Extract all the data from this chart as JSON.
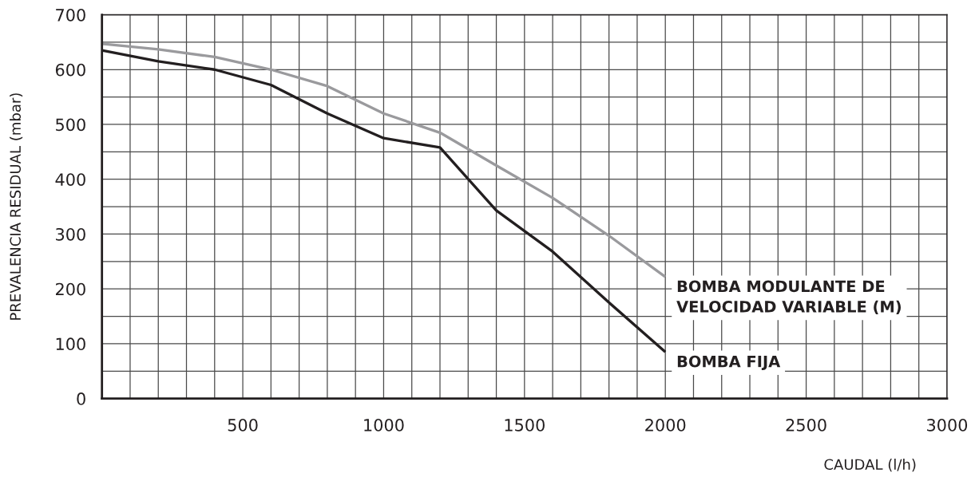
{
  "chart_data": {
    "type": "line",
    "xlabel": "CAUDAL (l/h)",
    "ylabel": "PREVALENCIA RESIDUAL (mbar)",
    "x": [
      0,
      200,
      400,
      600,
      800,
      1000,
      1200,
      1400,
      1600,
      1800,
      2000
    ],
    "series": [
      {
        "name": "BOMBA MODULANTE DE\nVELOCIDAD VARIABLE (M)",
        "color": "#9a9a9d",
        "values": [
          647,
          637,
          623,
          600,
          570,
          520,
          485,
          425,
          366,
          297,
          222
        ]
      },
      {
        "name": "BOMBA FIJA",
        "color": "#231f20",
        "values": [
          635,
          615,
          600,
          572,
          520,
          475,
          458,
          343,
          268,
          175,
          85
        ]
      }
    ],
    "xlim": [
      0,
      3000
    ],
    "ylim": [
      0,
      700
    ],
    "xticks": [
      {
        "value": 100,
        "label": null
      },
      {
        "value": 200,
        "label": null
      },
      {
        "value": 300,
        "label": null
      },
      {
        "value": 400,
        "label": null
      },
      500,
      {
        "value": 600,
        "label": null
      },
      {
        "value": 700,
        "label": null
      },
      {
        "value": 800,
        "label": null
      },
      {
        "value": 900,
        "label": null
      },
      1000,
      {
        "value": 1100,
        "label": null
      },
      {
        "value": 1200,
        "label": null
      },
      {
        "value": 1300,
        "label": null
      },
      {
        "value": 1400,
        "label": null
      },
      1500,
      {
        "value": 1600,
        "label": null
      },
      {
        "value": 1700,
        "label": null
      },
      {
        "value": 1800,
        "label": null
      },
      {
        "value": 1900,
        "label": null
      },
      2000,
      {
        "value": 2100,
        "label": null
      },
      {
        "value": 2200,
        "label": null
      },
      {
        "value": 2300,
        "label": null
      },
      {
        "value": 2400,
        "label": null
      },
      2500,
      {
        "value": 2600,
        "label": null
      },
      {
        "value": 2700,
        "label": null
      },
      {
        "value": 2800,
        "label": null
      },
      {
        "value": 2900,
        "label": null
      },
      3000
    ],
    "yticks": [
      0,
      {
        "value": 50,
        "label": null
      },
      100,
      {
        "value": 150,
        "label": null
      },
      200,
      {
        "value": 250,
        "label": null
      },
      300,
      {
        "value": 350,
        "label": null
      },
      400,
      {
        "value": 450,
        "label": null
      },
      500,
      {
        "value": 550,
        "label": null
      },
      600,
      {
        "value": 650,
        "label": null
      },
      700
    ],
    "grid": true,
    "line_style": "solid"
  }
}
